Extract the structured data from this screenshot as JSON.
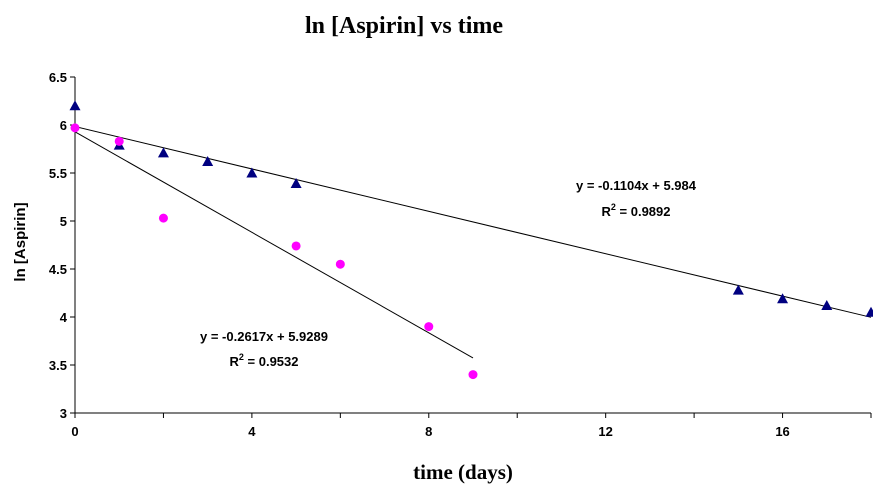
{
  "chart_data": {
    "type": "scatter",
    "title": "ln [Aspirin] vs time",
    "xlabel": "time (days)",
    "ylabel": "ln [Aspirin]",
    "xlim": [
      0,
      18
    ],
    "ylim": [
      3,
      6.5
    ],
    "x_ticks": [
      "0",
      "4",
      "8",
      "12",
      "16"
    ],
    "y_ticks": [
      "3",
      "3.5",
      "4",
      "4.5",
      "5",
      "5.5",
      "6",
      "6.5"
    ],
    "grid": false,
    "series": [
      {
        "marker": "triangle",
        "color": "#000080",
        "points": [
          [
            0,
            6.2
          ],
          [
            1,
            5.79
          ],
          [
            2,
            5.71
          ],
          [
            3,
            5.62
          ],
          [
            4,
            5.5
          ],
          [
            5,
            5.39
          ],
          [
            15,
            4.28
          ],
          [
            16,
            4.19
          ],
          [
            17,
            4.12
          ],
          [
            18,
            4.05
          ]
        ],
        "trendline": {
          "slope": -0.1104,
          "intercept": 5.984,
          "x_range": [
            0,
            18
          ]
        },
        "equation": "y = -0.1104x + 5.984",
        "r2_label": "R",
        "r2_sup": "2",
        "r2_value": " = 0.9892"
      },
      {
        "marker": "circle",
        "color": "#ff00ff",
        "points": [
          [
            0,
            5.97
          ],
          [
            1,
            5.83
          ],
          [
            2,
            5.03
          ],
          [
            5,
            4.74
          ],
          [
            6,
            4.55
          ],
          [
            8,
            3.9
          ],
          [
            9,
            3.4
          ]
        ],
        "trendline": {
          "slope": -0.2617,
          "intercept": 5.9289,
          "x_range": [
            0,
            9
          ]
        },
        "equation": "y = -0.2617x + 5.9289",
        "r2_label": "R",
        "r2_sup": "2",
        "r2_value": " = 0.9532"
      }
    ]
  }
}
